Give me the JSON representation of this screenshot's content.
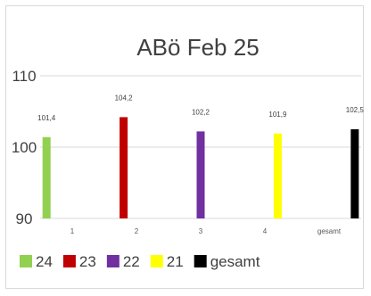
{
  "chart_data": {
    "type": "bar",
    "title": "ABö Feb 25",
    "xlabel": "",
    "ylabel": "",
    "ylim": [
      90,
      110
    ],
    "yticks": [
      90,
      100,
      110
    ],
    "grid": "horizontal",
    "legend_position": "bottom",
    "categories": [
      "1",
      "2",
      "3",
      "4",
      "gesamt"
    ],
    "series": [
      {
        "name": "24",
        "color": "#92d050",
        "values": [
          101.4,
          null,
          null,
          null,
          null
        ],
        "labels": [
          "101,4",
          "",
          "",
          "",
          ""
        ]
      },
      {
        "name": "23",
        "color": "#c00000",
        "values": [
          null,
          104.2,
          null,
          null,
          null
        ],
        "labels": [
          "",
          "104,2",
          "",
          "",
          ""
        ]
      },
      {
        "name": "22",
        "color": "#7030a0",
        "values": [
          null,
          null,
          102.2,
          null,
          null
        ],
        "labels": [
          "",
          "",
          "102,2",
          "",
          ""
        ]
      },
      {
        "name": "21",
        "color": "#ffff00",
        "values": [
          null,
          null,
          null,
          101.9,
          null
        ],
        "labels": [
          "",
          "",
          "",
          "101,9",
          ""
        ]
      },
      {
        "name": "gesamt",
        "color": "#000000",
        "values": [
          null,
          null,
          null,
          null,
          102.5
        ],
        "labels": [
          "",
          "",
          "",
          "",
          "102,5"
        ]
      }
    ]
  }
}
